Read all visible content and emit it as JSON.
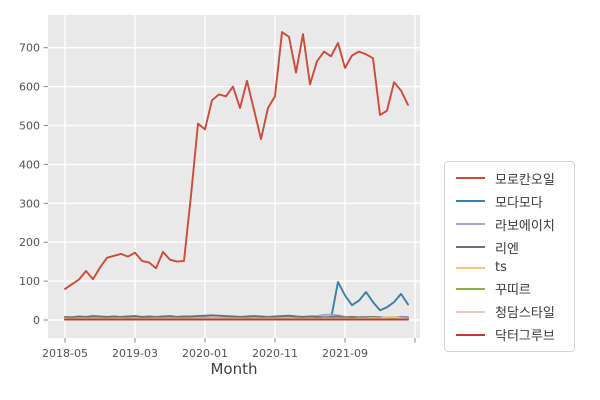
{
  "figure": {
    "background": "#ffffff"
  },
  "plot": {
    "background": "#e9e9e9",
    "gridline_color": "#ffffff",
    "tick_color": "#8a8a8a",
    "tick_label_color": "#525252",
    "axis_title_color": "#3f3f3f",
    "legend_border_color": "#d4d4d4",
    "legend_background": "#ffffff"
  },
  "chart_data": {
    "type": "line",
    "title": "",
    "xlabel": "Month",
    "ylabel": "",
    "grid": true,
    "legend_position": "right",
    "ylim": [
      -45,
      785
    ],
    "yticks": [
      0,
      100,
      200,
      300,
      400,
      500,
      600,
      700
    ],
    "xtick_indices": [
      0,
      10,
      20,
      30,
      40,
      50
    ],
    "xtick_labels": [
      "2018-05",
      "2019-03",
      "2020-01",
      "2020-11",
      "2021-09",
      ""
    ],
    "x": [
      "2018-05",
      "2018-06",
      "2018-07",
      "2018-08",
      "2018-09",
      "2018-10",
      "2018-11",
      "2018-12",
      "2019-01",
      "2019-02",
      "2019-03",
      "2019-04",
      "2019-05",
      "2019-06",
      "2019-07",
      "2019-08",
      "2019-09",
      "2019-10",
      "2019-11",
      "2019-12",
      "2020-01",
      "2020-02",
      "2020-03",
      "2020-04",
      "2020-05",
      "2020-06",
      "2020-07",
      "2020-08",
      "2020-09",
      "2020-10",
      "2020-11",
      "2020-12",
      "2021-01",
      "2021-02",
      "2021-03",
      "2021-04",
      "2021-05",
      "2021-06",
      "2021-07",
      "2021-08",
      "2021-09",
      "2021-10",
      "2021-11",
      "2021-12",
      "2022-01",
      "2022-02",
      "2022-03",
      "2022-04",
      "2022-05",
      "2022-06"
    ],
    "series": [
      {
        "name": "모로칸오일",
        "color": "#c84b3c",
        "values": [
          80,
          92,
          104,
          126,
          105,
          135,
          160,
          165,
          170,
          163,
          173,
          152,
          148,
          133,
          175,
          155,
          150,
          152,
          320,
          505,
          490,
          565,
          580,
          575,
          600,
          545,
          615,
          540,
          465,
          545,
          575,
          740,
          728,
          636,
          735,
          606,
          665,
          690,
          678,
          712,
          648,
          680,
          690,
          683,
          673,
          527,
          538,
          611,
          590,
          553
        ]
      },
      {
        "name": "모다모다",
        "color": "#3f7ca6",
        "values": [
          2,
          2,
          2,
          3,
          2,
          2,
          3,
          2,
          2,
          3,
          2,
          2,
          3,
          2,
          2,
          2,
          3,
          2,
          2,
          3,
          3,
          2,
          3,
          2,
          2,
          3,
          2,
          3,
          2,
          2,
          3,
          3,
          4,
          3,
          4,
          3,
          4,
          4,
          3,
          98,
          63,
          38,
          50,
          72,
          46,
          25,
          33,
          46,
          67,
          40
        ]
      },
      {
        "name": "라보에이치",
        "color": "#a8a2d2",
        "values": [
          6,
          6,
          5,
          6,
          7,
          6,
          6,
          7,
          6,
          5,
          6,
          6,
          5,
          6,
          6,
          5,
          6,
          6,
          6,
          7,
          7,
          6,
          6,
          7,
          6,
          6,
          7,
          6,
          6,
          7,
          8,
          8,
          9,
          8,
          8,
          9,
          10,
          13,
          14,
          12,
          8,
          7,
          7,
          8,
          7,
          6,
          7,
          8,
          8,
          8
        ]
      },
      {
        "name": "리엔",
        "color": "#6f6f6f",
        "values": [
          8,
          7,
          9,
          8,
          10,
          9,
          8,
          9,
          8,
          9,
          10,
          8,
          9,
          8,
          9,
          10,
          8,
          9,
          9,
          10,
          11,
          12,
          11,
          10,
          9,
          8,
          9,
          10,
          9,
          8,
          9,
          10,
          11,
          9,
          8,
          9,
          8,
          7,
          8,
          9,
          7,
          8,
          7,
          7,
          8,
          7,
          6,
          7,
          7,
          6
        ]
      },
      {
        "name": "ts",
        "color": "#e9c97e",
        "values": [
          4,
          3,
          4,
          4,
          3,
          4,
          3,
          4,
          4,
          3,
          4,
          3,
          3,
          4,
          4,
          3,
          4,
          3,
          4,
          4,
          3,
          4,
          4,
          3,
          4,
          4,
          3,
          4,
          3,
          4,
          4,
          3,
          4,
          4,
          3,
          4,
          3,
          4,
          4,
          3,
          4,
          3,
          4,
          4,
          5,
          4,
          8,
          8,
          5,
          4
        ]
      },
      {
        "name": "꾸띠르",
        "color": "#90ae54",
        "values": [
          3,
          2,
          3,
          3,
          2,
          3,
          2,
          3,
          3,
          2,
          3,
          2,
          2,
          3,
          3,
          2,
          3,
          2,
          3,
          3,
          2,
          3,
          3,
          2,
          3,
          3,
          2,
          3,
          2,
          3,
          3,
          2,
          3,
          3,
          2,
          3,
          2,
          3,
          3,
          2,
          3,
          2,
          3,
          3,
          2,
          3,
          3,
          2,
          3,
          3
        ]
      },
      {
        "name": "청담스타일",
        "color": "#f2c6c4",
        "values": [
          2,
          1,
          2,
          2,
          1,
          2,
          1,
          2,
          2,
          1,
          2,
          1,
          1,
          2,
          2,
          1,
          2,
          1,
          2,
          2,
          1,
          2,
          2,
          1,
          2,
          2,
          1,
          2,
          1,
          2,
          2,
          1,
          2,
          2,
          1,
          2,
          1,
          2,
          2,
          1,
          2,
          1,
          2,
          2,
          1,
          2,
          2,
          1,
          2,
          2
        ]
      },
      {
        "name": "닥터그루브",
        "color": "#bf392c",
        "values": [
          1,
          1,
          1,
          1,
          1,
          1,
          1,
          1,
          1,
          1,
          1,
          1,
          1,
          1,
          1,
          1,
          1,
          1,
          1,
          1,
          1,
          1,
          1,
          1,
          1,
          1,
          1,
          1,
          1,
          1,
          1,
          1,
          1,
          1,
          1,
          1,
          1,
          1,
          1,
          1,
          1,
          1,
          1,
          1,
          1,
          1,
          1,
          1,
          1,
          1
        ]
      }
    ]
  }
}
